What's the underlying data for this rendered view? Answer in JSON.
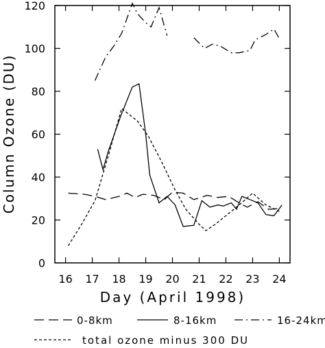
{
  "chart_data": {
    "type": "line",
    "title": "",
    "xlabel": "Day (April 1998)",
    "ylabel": "Column Ozone (DU)",
    "xlim": [
      15.6,
      24.4
    ],
    "ylim": [
      0,
      120
    ],
    "xticks": [
      "16",
      "17",
      "18",
      "19",
      "20",
      "21",
      "22",
      "23",
      "24"
    ],
    "yticks": [
      "0",
      "20",
      "40",
      "60",
      "80",
      "100",
      "120"
    ],
    "grid": false,
    "legend_position": "bottom",
    "series": [
      {
        "name": "0-8km",
        "style": "long-dash",
        "color": "#000000",
        "segments": [
          [
            [
              16.1,
              32.5
            ],
            [
              16.7,
              32
            ],
            [
              17.1,
              31
            ],
            [
              17.5,
              29.5
            ],
            [
              18.0,
              31
            ],
            [
              18.3,
              32.5
            ],
            [
              18.6,
              30.5
            ],
            [
              18.9,
              32
            ],
            [
              19.3,
              31.5
            ],
            [
              19.7,
              29.5
            ],
            [
              20.0,
              33
            ],
            [
              20.4,
              32.5
            ],
            [
              20.8,
              29.5
            ],
            [
              21.3,
              31.5
            ],
            [
              21.7,
              30.5
            ],
            [
              22.1,
              31
            ],
            [
              22.5,
              28
            ],
            [
              22.8,
              26
            ],
            [
              23.2,
              28.5
            ],
            [
              23.6,
              25
            ],
            [
              24.1,
              25.5
            ]
          ]
        ]
      },
      {
        "name": "8-16km",
        "style": "solid",
        "color": "#000000",
        "segments": [
          [
            [
              17.2,
              53
            ],
            [
              17.4,
              43.5
            ],
            [
              17.6,
              52
            ],
            [
              18.05,
              68
            ],
            [
              18.5,
              82
            ],
            [
              18.75,
              83.5
            ],
            [
              19.0,
              60
            ],
            [
              19.15,
              41
            ],
            [
              19.5,
              28
            ],
            [
              19.8,
              31
            ],
            [
              20.1,
              27
            ],
            [
              20.4,
              17
            ],
            [
              20.8,
              17.5
            ],
            [
              21.1,
              29
            ],
            [
              21.4,
              26
            ],
            [
              21.7,
              27
            ],
            [
              21.9,
              26.5
            ],
            [
              22.2,
              28
            ],
            [
              22.4,
              25
            ],
            [
              22.6,
              31
            ],
            [
              22.9,
              29.5
            ],
            [
              23.2,
              28
            ],
            [
              23.5,
              22.5
            ],
            [
              23.8,
              22
            ],
            [
              24.1,
              27
            ]
          ]
        ]
      },
      {
        "name": "16-24km",
        "style": "dash-dot",
        "color": "#000000",
        "segments": [
          [
            [
              17.1,
              85
            ],
            [
              17.5,
              96
            ],
            [
              17.8,
              101
            ],
            [
              18.1,
              107
            ],
            [
              18.5,
              121
            ],
            [
              18.7,
              116
            ],
            [
              19.0,
              112
            ],
            [
              19.2,
              110
            ],
            [
              19.5,
              119
            ],
            [
              19.8,
              106
            ]
          ],
          [
            [
              20.8,
              105
            ],
            [
              21.2,
              100
            ],
            [
              21.5,
              102
            ],
            [
              21.8,
              101
            ],
            [
              22.2,
              98
            ],
            [
              22.5,
              98
            ],
            [
              22.9,
              99
            ],
            [
              23.1,
              104
            ],
            [
              23.5,
              106.5
            ],
            [
              23.8,
              109
            ],
            [
              24.0,
              104.5
            ]
          ]
        ]
      },
      {
        "name": "total ozone minus 300 DU",
        "style": "dotted",
        "color": "#000000",
        "segments": [
          [
            [
              16.1,
              8
            ],
            [
              16.6,
              18
            ],
            [
              17.1,
              29
            ],
            [
              17.6,
              50
            ],
            [
              18.1,
              72
            ],
            [
              18.7,
              66
            ],
            [
              19.1,
              59
            ],
            [
              19.6,
              47
            ],
            [
              20.1,
              34
            ],
            [
              20.5,
              25
            ],
            [
              21.0,
              18
            ],
            [
              21.25,
              15
            ],
            [
              21.6,
              18
            ],
            [
              22.1,
              23
            ],
            [
              22.5,
              27
            ],
            [
              23.0,
              32.5
            ],
            [
              23.5,
              27
            ],
            [
              24.0,
              24
            ]
          ]
        ]
      }
    ]
  }
}
